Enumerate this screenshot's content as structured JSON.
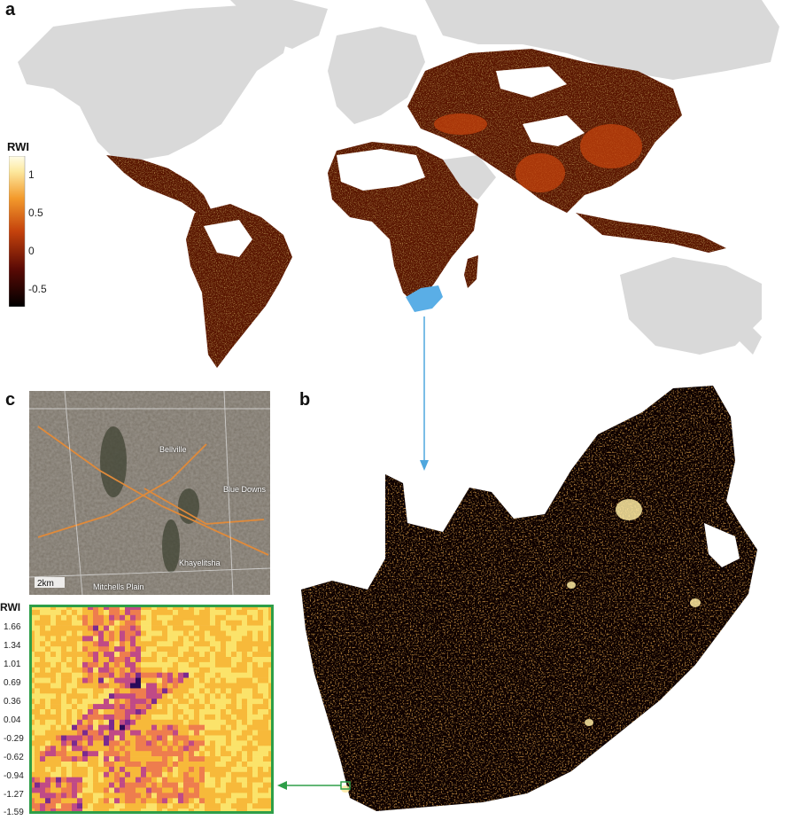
{
  "panels": {
    "a": "a",
    "b": "b",
    "c": "c"
  },
  "legend_a": {
    "title": "RWI",
    "ticks": [
      "1",
      "0.5",
      "0",
      "-0.5"
    ],
    "colors": [
      "#000000",
      "#5a0a05",
      "#c4420c",
      "#f39a2c",
      "#fde9a0",
      "#fffde8"
    ]
  },
  "legend_c": {
    "title": "RWI",
    "ticks": [
      "1.66",
      "1.34",
      "1.01",
      "0.69",
      "0.36",
      "0.04",
      "-0.29",
      "-0.62",
      "-0.94",
      "-1.27",
      "-1.59"
    ],
    "colors": [
      "#2b0a5a",
      "#7a2a8f",
      "#c04a86",
      "#ee7d4e",
      "#f7b93a",
      "#fbe36a"
    ]
  },
  "satellite": {
    "scale": "2km",
    "places": [
      "Blue Downs",
      "Khayelitsha",
      "Mitchells Plain",
      "Bellville"
    ]
  },
  "colors": {
    "land_grey": "#d9d9d9",
    "highlight_blue": "#5aaee6",
    "arrow_blue": "#4fa7de",
    "frame_green": "#2e9e48"
  }
}
